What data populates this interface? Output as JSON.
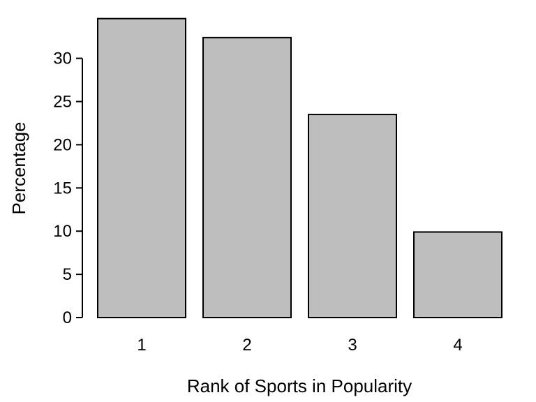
{
  "chart_data": {
    "type": "bar",
    "categories": [
      "1",
      "2",
      "3",
      "4"
    ],
    "values": [
      34.6,
      32.4,
      23.5,
      9.9
    ],
    "xlabel": "Rank of Sports in Popularity",
    "ylabel": "Percentage",
    "ylim": [
      0,
      34.6
    ],
    "yticks": [
      0,
      5,
      10,
      15,
      20,
      25,
      30
    ],
    "grid": false,
    "bar_fill": "#bebebe",
    "bar_stroke": "#000000"
  }
}
